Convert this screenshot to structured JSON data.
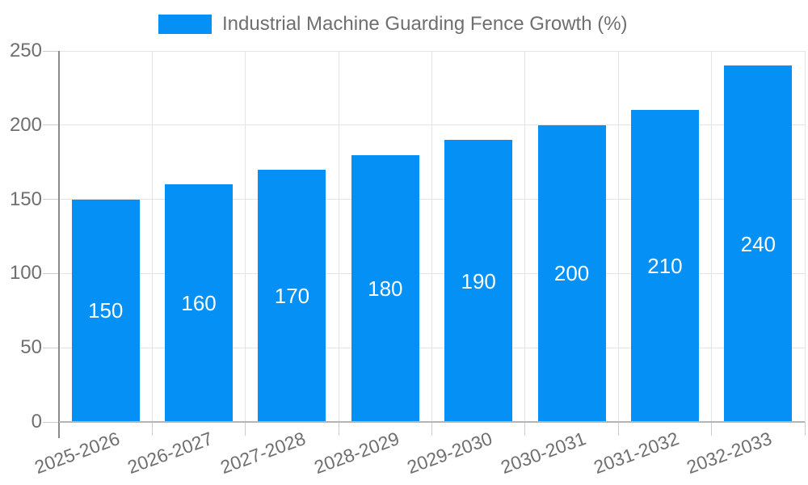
{
  "chart_data": {
    "type": "bar",
    "title": "Industrial Machine Guarding Fence Growth (%)",
    "series": [
      {
        "name": "Industrial Machine Guarding Fence Growth (%)",
        "values": [
          150,
          160,
          170,
          180,
          190,
          200,
          210,
          240
        ]
      }
    ],
    "categories": [
      "2025-2026",
      "2026-2027",
      "2027-2028",
      "2028-2029",
      "2029-2030",
      "2030-2031",
      "2031-2032",
      "2032-2033"
    ],
    "xlabel": "",
    "ylabel": "",
    "ylim": [
      0,
      250
    ],
    "yticks": [
      0,
      50,
      100,
      150,
      200,
      250
    ],
    "grid": true,
    "legend_position": "top",
    "bar_value_labels": [
      "150",
      "160",
      "170",
      "180",
      "190",
      "200",
      "210",
      "240"
    ]
  },
  "colors": {
    "bar": "#0590f5",
    "axis_text": "#6f6f6f",
    "legend_text": "#6f6f6f",
    "grid_line": "#e4e4e4",
    "y_axis_line": "#8a8a8a",
    "x_axis_line": "#b5b5b5",
    "tick_line": "#cccccc",
    "bar_label_text": "#ffffff",
    "background": "#ffffff"
  }
}
